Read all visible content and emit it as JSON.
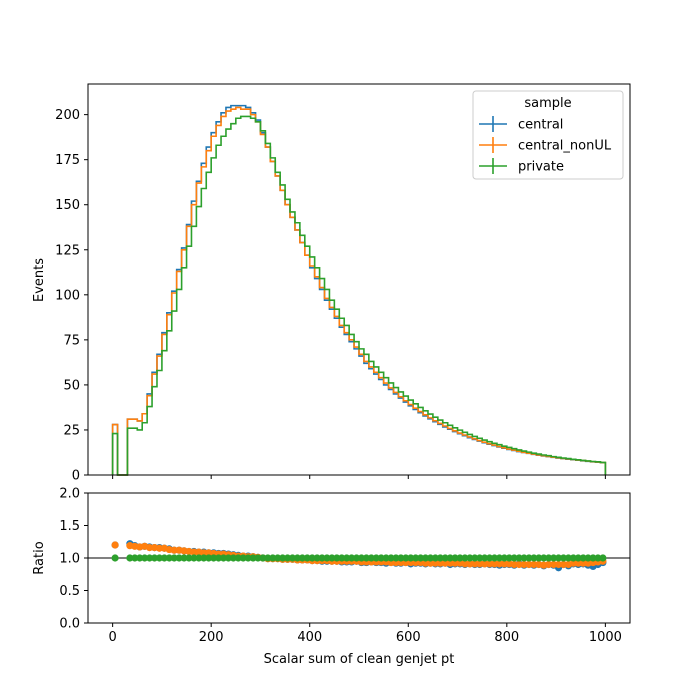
{
  "chart_data": [
    {
      "panel": "main",
      "type": "line",
      "drawstyle": "steps",
      "xlabel": "",
      "ylabel": "Events",
      "xlim": [
        -50,
        1050
      ],
      "ylim": [
        0,
        217
      ],
      "xticks": [
        "0",
        "200",
        "400",
        "600",
        "800",
        "1000"
      ],
      "xtick_values": [
        0,
        200,
        400,
        600,
        800,
        1000
      ],
      "yticks": [
        "0",
        "25",
        "50",
        "75",
        "100",
        "125",
        "150",
        "175",
        "200"
      ],
      "ytick_values": [
        0,
        25,
        50,
        75,
        100,
        125,
        150,
        175,
        200
      ],
      "bin_width": 10,
      "x": [
        0,
        10,
        20,
        30,
        40,
        50,
        60,
        70,
        80,
        90,
        100,
        110,
        120,
        130,
        140,
        150,
        160,
        170,
        180,
        190,
        200,
        210,
        220,
        230,
        240,
        250,
        260,
        270,
        280,
        290,
        300,
        310,
        320,
        330,
        340,
        350,
        360,
        370,
        380,
        390,
        400,
        410,
        420,
        430,
        440,
        450,
        460,
        470,
        480,
        490,
        500,
        510,
        520,
        530,
        540,
        550,
        560,
        570,
        580,
        590,
        600,
        610,
        620,
        630,
        640,
        650,
        660,
        670,
        680,
        690,
        700,
        710,
        720,
        730,
        740,
        750,
        760,
        770,
        780,
        790,
        800,
        810,
        820,
        830,
        840,
        850,
        860,
        870,
        880,
        890,
        900,
        910,
        920,
        930,
        940,
        950,
        960,
        970,
        980,
        990
      ],
      "legend": {
        "title": "sample",
        "position": "upper right"
      },
      "series": [
        {
          "name": "central",
          "color": "#1f77b4",
          "values": [
            28,
            0,
            0,
            31,
            31,
            30,
            34,
            45,
            57,
            67,
            79,
            90,
            102,
            114,
            126,
            139,
            152,
            163,
            173,
            182,
            190,
            196,
            201,
            204,
            205,
            205,
            205,
            204,
            201,
            197,
            190,
            182,
            174,
            166,
            158,
            150,
            143,
            136,
            129,
            122,
            115,
            109,
            103,
            97,
            92,
            87,
            82,
            78,
            74,
            70,
            66,
            62,
            59,
            56,
            53,
            50,
            47.5,
            45,
            42.7,
            40.5,
            38.4,
            36.4,
            34.6,
            32.8,
            31.2,
            29.6,
            28.1,
            26.7,
            25.4,
            24.1,
            22.9,
            21.8,
            20.7,
            19.7,
            18.8,
            17.9,
            17.1,
            16.3,
            15.6,
            14.9,
            14.2,
            13.6,
            13,
            12.5,
            12,
            11.5,
            11,
            10.6,
            10.2,
            9.8,
            9.4,
            9.1,
            8.8,
            8.5,
            8.2,
            7.9,
            7.6,
            7.3,
            7.1,
            6.8
          ]
        },
        {
          "name": "central_nonUL",
          "color": "#ff7f0e",
          "values": [
            28,
            0,
            0,
            31,
            31,
            30,
            34,
            44,
            56,
            66,
            78,
            89,
            101,
            113,
            125,
            138,
            150,
            162,
            171,
            180,
            188,
            194,
            199,
            202,
            203,
            204,
            203,
            203,
            200,
            196,
            189,
            182,
            174,
            166,
            158,
            150,
            143,
            136,
            129,
            122,
            116,
            110,
            104,
            98,
            93,
            88,
            83,
            79,
            75,
            71,
            67,
            63,
            60,
            57,
            54,
            51,
            48.3,
            45.8,
            43.4,
            41.2,
            39.1,
            37.1,
            35.2,
            33.4,
            31.7,
            30.1,
            28.6,
            27.2,
            25.8,
            24.5,
            23.3,
            22.2,
            21.1,
            20.1,
            19.1,
            18.2,
            17.4,
            16.6,
            15.8,
            15.1,
            14.4,
            13.8,
            13.2,
            12.6,
            12.1,
            11.6,
            11.1,
            10.7,
            10.3,
            9.9,
            9.5,
            9.2,
            8.9,
            8.6,
            8.3,
            8,
            7.7,
            7.4,
            7.2,
            6.9
          ]
        },
        {
          "name": "private",
          "color": "#2ca02c",
          "values": [
            23,
            0,
            0,
            26,
            26,
            25,
            29,
            38,
            49,
            58,
            69,
            80,
            91,
            103,
            115,
            127,
            138,
            149,
            159,
            168,
            176,
            183,
            188,
            192,
            195,
            198,
            199,
            199,
            198,
            196,
            191,
            184,
            176,
            168,
            161,
            153,
            146,
            140,
            133,
            127,
            121,
            115,
            109,
            103,
            97,
            92,
            87,
            83,
            78,
            74,
            70,
            67,
            63,
            60,
            57,
            54,
            51.1,
            48.5,
            46.1,
            43.8,
            41.6,
            39.5,
            37.5,
            35.6,
            33.8,
            32.1,
            30.5,
            29,
            27.6,
            26.2,
            24.9,
            23.7,
            22.5,
            21.4,
            20.4,
            19.4,
            18.5,
            17.6,
            16.8,
            16,
            15.3,
            14.6,
            13.9,
            13.3,
            12.7,
            12.1,
            11.6,
            11.1,
            10.7,
            10.2,
            9.8,
            9.4,
            9.1,
            8.7,
            8.4,
            8.1,
            7.8,
            7.5,
            7.3,
            7
          ]
        }
      ]
    },
    {
      "panel": "ratio",
      "type": "scatter",
      "xlabel": "Scalar sum of clean genjet pt",
      "ylabel": "Ratio",
      "xlim": [
        -50,
        1050
      ],
      "ylim": [
        0,
        2
      ],
      "reference_line": 1.0,
      "xticks": [
        "0",
        "200",
        "400",
        "600",
        "800",
        "1000"
      ],
      "xtick_values": [
        0,
        200,
        400,
        600,
        800,
        1000
      ],
      "yticks": [
        "0.0",
        "0.5",
        "1.0",
        "1.5",
        "2.0"
      ],
      "ytick_values": [
        0,
        0.5,
        1.0,
        1.5,
        2.0
      ],
      "ratio_points": {
        "x": [
          5,
          35,
          45,
          55,
          65,
          75,
          85,
          95,
          105,
          115,
          125,
          135,
          145,
          155,
          165,
          175,
          185,
          195,
          205,
          215,
          225,
          235,
          245,
          255,
          265,
          275,
          285,
          295,
          305,
          315,
          325,
          335,
          345,
          355,
          365,
          375,
          385,
          395,
          405,
          415,
          425,
          435,
          445,
          455,
          465,
          475,
          485,
          495,
          505,
          515,
          525,
          535,
          545,
          555,
          565,
          575,
          585,
          595,
          605,
          615,
          625,
          635,
          645,
          655,
          665,
          675,
          685,
          695,
          705,
          715,
          725,
          735,
          745,
          755,
          765,
          775,
          785,
          795,
          805,
          815,
          825,
          835,
          845,
          855,
          865,
          875,
          885,
          895,
          905,
          915,
          925,
          935,
          945,
          955,
          965,
          975,
          985,
          995
        ],
        "series": [
          {
            "name": "central",
            "color": "#1f77b4",
            "values": [
              1.2,
              1.22,
              1.19,
              1.17,
              1.18,
              1.17,
              1.16,
              1.16,
              1.15,
              1.14,
              1.12,
              1.12,
              1.11,
              1.1,
              1.1,
              1.09,
              1.09,
              1.08,
              1.08,
              1.07,
              1.07,
              1.06,
              1.05,
              1.04,
              1.03,
              1.03,
              1.02,
              1.01,
              1,
              0.99,
              0.99,
              0.99,
              0.98,
              0.98,
              0.98,
              0.97,
              0.97,
              0.97,
              0.96,
              0.96,
              0.95,
              0.95,
              0.95,
              0.95,
              0.94,
              0.94,
              0.94,
              0.95,
              0.93,
              0.93,
              0.94,
              0.93,
              0.93,
              0.92,
              0.93,
              0.92,
              0.92,
              0.93,
              0.91,
              0.92,
              0.92,
              0.91,
              0.92,
              0.91,
              0.91,
              0.92,
              0.9,
              0.91,
              0.91,
              0.9,
              0.91,
              0.9,
              0.9,
              0.91,
              0.9,
              0.9,
              0.89,
              0.9,
              0.9,
              0.89,
              0.91,
              0.89,
              0.9,
              0.89,
              0.9,
              0.88,
              0.9,
              0.89,
              0.85,
              0.9,
              0.88,
              0.91,
              0.9,
              0.91,
              0.89,
              0.87,
              0.9,
              0.93
            ]
          },
          {
            "name": "central_nonUL",
            "color": "#ff7f0e",
            "values": [
              1.2,
              1.19,
              1.18,
              1.17,
              1.18,
              1.16,
              1.16,
              1.15,
              1.15,
              1.13,
              1.12,
              1.12,
              1.11,
              1.1,
              1.09,
              1.09,
              1.08,
              1.08,
              1.07,
              1.06,
              1.06,
              1.05,
              1.04,
              1.03,
              1.03,
              1.02,
              1.02,
              1.01,
              1,
              0.99,
              0.99,
              0.99,
              0.98,
              0.98,
              0.98,
              0.97,
              0.97,
              0.97,
              0.96,
              0.96,
              0.96,
              0.96,
              0.95,
              0.95,
              0.95,
              0.95,
              0.95,
              0.95,
              0.94,
              0.94,
              0.94,
              0.94,
              0.94,
              0.94,
              0.93,
              0.93,
              0.93,
              0.93,
              0.93,
              0.93,
              0.93,
              0.92,
              0.92,
              0.92,
              0.92,
              0.92,
              0.92,
              0.92,
              0.92,
              0.91,
              0.91,
              0.91,
              0.91,
              0.91,
              0.91,
              0.91,
              0.91,
              0.91,
              0.91,
              0.9,
              0.9,
              0.9,
              0.9,
              0.9,
              0.9,
              0.89,
              0.9,
              0.9,
              0.9,
              0.9,
              0.9,
              0.92,
              0.92,
              0.92,
              0.92,
              0.93,
              0.94,
              0.95
            ]
          },
          {
            "name": "private",
            "color": "#2ca02c",
            "values": [
              1,
              1,
              1,
              1,
              1,
              1,
              1,
              1,
              1,
              1,
              1,
              1,
              1,
              1,
              1,
              1,
              1,
              1,
              1,
              1,
              1,
              1,
              1,
              1,
              1,
              1,
              1,
              1,
              1,
              1,
              1,
              1,
              1,
              1,
              1,
              1,
              1,
              1,
              1,
              1,
              1,
              1,
              1,
              1,
              1,
              1,
              1,
              1,
              1,
              1,
              1,
              1,
              1,
              1,
              1,
              1,
              1,
              1,
              1,
              1,
              1,
              1,
              1,
              1,
              1,
              1,
              1,
              1,
              1,
              1,
              1,
              1,
              1,
              1,
              1,
              1,
              1,
              1,
              1,
              1,
              1,
              1,
              1,
              1,
              1,
              1,
              1,
              1,
              1,
              1,
              1,
              1,
              1,
              1,
              1,
              1,
              1,
              1
            ]
          }
        ]
      }
    }
  ]
}
